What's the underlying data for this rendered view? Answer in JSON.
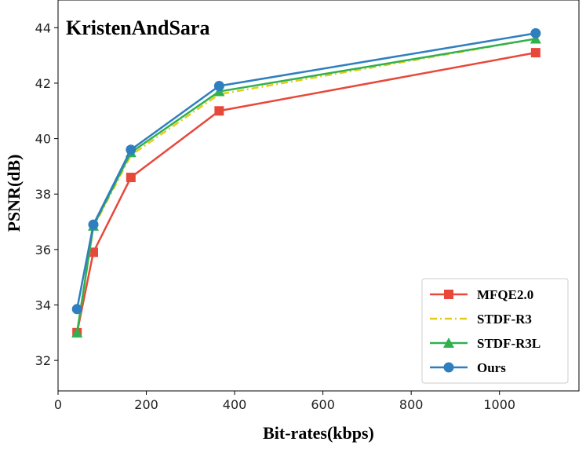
{
  "chart_data": {
    "type": "line",
    "annotation": "KristenAndSara",
    "xlabel": "Bit-rates(kbps)",
    "ylabel": "PSNR(dB)",
    "xlim": [
      0,
      1180
    ],
    "ylim": [
      30.9,
      45.0
    ],
    "xticks": [
      0,
      200,
      400,
      600,
      800,
      1000
    ],
    "yticks": [
      32,
      34,
      36,
      38,
      40,
      42,
      44
    ],
    "grid": false,
    "legend_position": "bottom-right",
    "series": [
      {
        "name": "MFQE2.0",
        "color": "#e8483a",
        "marker": "square",
        "dash": "solid",
        "x": [
          43,
          80,
          165,
          365,
          1082
        ],
        "y": [
          33.0,
          35.9,
          38.6,
          41.0,
          43.1
        ]
      },
      {
        "name": "STDF-R3",
        "color": "#e6cc1a",
        "marker": "none",
        "dash": "dashdot",
        "x": [
          43,
          80,
          165,
          365,
          1082
        ],
        "y": [
          33.0,
          36.8,
          39.4,
          41.6,
          43.6
        ]
      },
      {
        "name": "STDF-R3L",
        "color": "#2fb14f",
        "marker": "triangle",
        "dash": "solid",
        "x": [
          43,
          80,
          165,
          365,
          1082
        ],
        "y": [
          33.0,
          36.85,
          39.5,
          41.7,
          43.6
        ]
      },
      {
        "name": "Ours",
        "color": "#2f7fbf",
        "marker": "circle",
        "dash": "solid",
        "x": [
          43,
          80,
          165,
          365,
          1082
        ],
        "y": [
          33.85,
          36.9,
          39.6,
          41.9,
          43.8
        ]
      }
    ]
  }
}
